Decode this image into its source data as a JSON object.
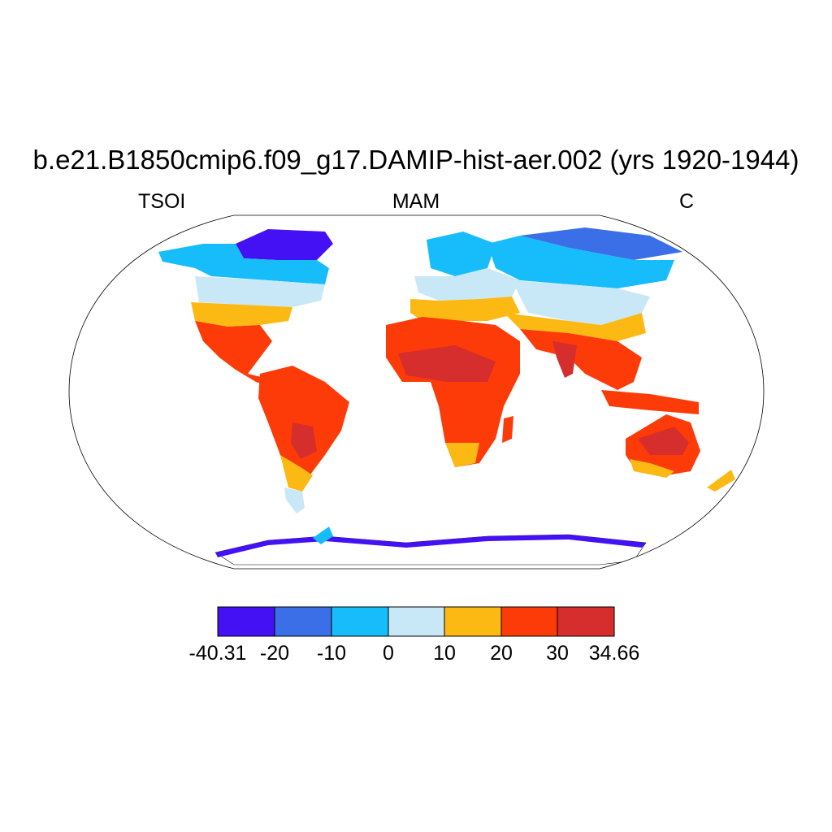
{
  "title": "b.e21.B1850cmip6.f09_g17.DAMIP-hist-aer.002 (yrs 1920-1944)",
  "left_label": "TSOI",
  "center_label": "MAM",
  "right_label": "C",
  "colorbar": {
    "colors": [
      "#4411f5",
      "#3a6fe8",
      "#16bdfa",
      "#c8e8f7",
      "#fdb913",
      "#fc3b09",
      "#d62d2d"
    ],
    "labels": [
      "-40.31",
      "-20",
      "-10",
      "0",
      "10",
      "20",
      "30",
      "34.66"
    ]
  },
  "colors": {
    "ocean": "#ffffff",
    "outline": "#000000"
  }
}
